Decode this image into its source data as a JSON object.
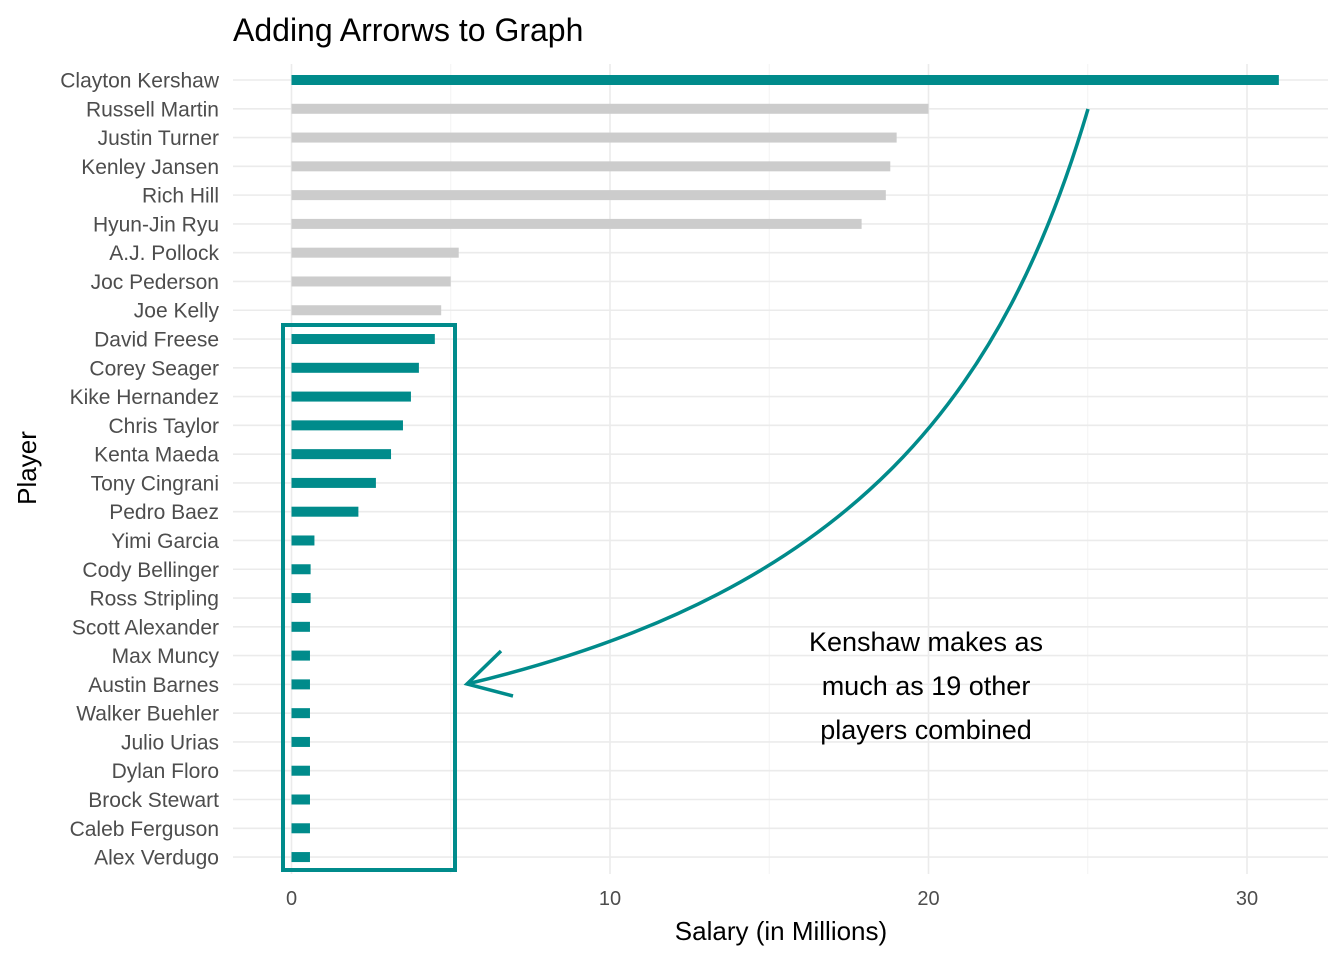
{
  "chart_data": {
    "type": "bar",
    "orientation": "horizontal",
    "title": "Adding Arrorws to Graph",
    "xlabel": "Salary (in Millions)",
    "ylabel": "Player",
    "xlim": [
      -1.5,
      32.5
    ],
    "xticks": [
      0,
      10,
      20,
      30
    ],
    "grid": true,
    "categories": [
      "Clayton Kershaw",
      "Russell Martin",
      "Justin Turner",
      "Kenley Jansen",
      "Rich Hill",
      "Hyun-Jin Ryu",
      "A.J. Pollock",
      "Joc Pederson",
      "Joe Kelly",
      "David Freese",
      "Corey Seager",
      "Kike Hernandez",
      "Chris Taylor",
      "Kenta Maeda",
      "Tony Cingrani",
      "Pedro Baez",
      "Yimi Garcia",
      "Cody Bellinger",
      "Ross Stripling",
      "Scott Alexander",
      "Max Muncy",
      "Austin Barnes",
      "Walker Buehler",
      "Julio Urias",
      "Dylan Floro",
      "Brock Stewart",
      "Caleb Ferguson",
      "Alex Verdugo"
    ],
    "values": [
      31.0,
      20.0,
      19.0,
      18.8,
      18.66,
      17.9,
      5.25,
      5.0,
      4.7,
      4.5,
      4.0,
      3.75,
      3.5,
      3.125,
      2.65,
      2.1,
      0.72,
      0.6,
      0.6,
      0.58,
      0.58,
      0.58,
      0.58,
      0.58,
      0.58,
      0.58,
      0.58,
      0.58
    ],
    "highlighted": [
      true,
      false,
      false,
      false,
      false,
      false,
      false,
      false,
      false,
      true,
      true,
      true,
      true,
      true,
      true,
      true,
      true,
      true,
      true,
      true,
      true,
      true,
      true,
      true,
      true,
      true,
      true,
      true
    ],
    "colors": {
      "highlight": "#008b8b",
      "other": "#cccccc",
      "box": "#008b8b",
      "arrow": "#008b8b"
    },
    "annotation": {
      "lines": [
        "Kenshaw makes as",
        "much as 19 other",
        "players combined"
      ]
    }
  }
}
